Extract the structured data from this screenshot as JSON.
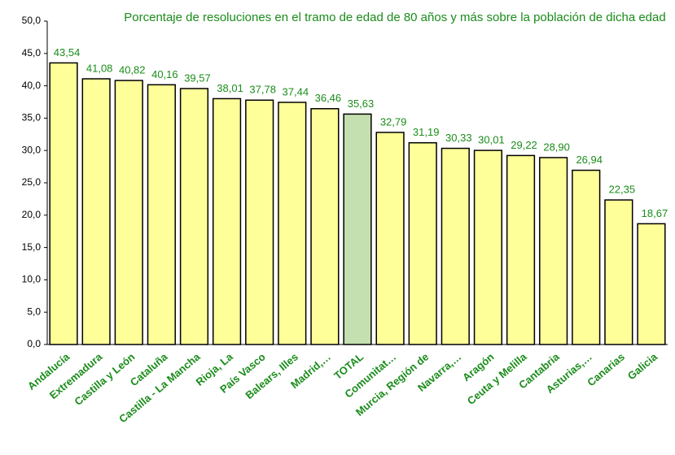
{
  "chart_data": {
    "type": "bar",
    "title": "Porcentaje de resoluciones en el tramo de edad de 80 años y más sobre la población de dicha edad",
    "categories": [
      "Andalucía",
      "Extremadura",
      "Castilla y León",
      "Cataluña",
      "Castilla - La Mancha",
      "Rioja, La",
      "País Vasco",
      "Balears, Illes",
      "Madrid,…",
      "TOTAL",
      "Comunitat…",
      "Murcia, Región de",
      "Navarra,…",
      "Aragón",
      "Ceuta y Melilla",
      "Cantabria",
      "Asturias,…",
      "Canarias",
      "Galicia"
    ],
    "values": [
      43.54,
      41.08,
      40.82,
      40.16,
      39.57,
      38.01,
      37.78,
      37.44,
      36.46,
      35.63,
      32.79,
      31.19,
      30.33,
      30.01,
      29.22,
      28.9,
      26.94,
      22.35,
      18.67
    ],
    "value_labels": [
      "43,54",
      "41,08",
      "40,82",
      "40,16",
      "39,57",
      "38,01",
      "37,78",
      "37,44",
      "36,46",
      "35,63",
      "32,79",
      "31,19",
      "30,33",
      "30,01",
      "29,22",
      "28,90",
      "26,94",
      "22,35",
      "18,67"
    ],
    "colors": [
      "#ffff99",
      "#ffff99",
      "#ffff99",
      "#ffff99",
      "#ffff99",
      "#ffff99",
      "#ffff99",
      "#ffff99",
      "#ffff99",
      "#c4dfb0",
      "#ffff99",
      "#ffff99",
      "#ffff99",
      "#ffff99",
      "#ffff99",
      "#ffff99",
      "#ffff99",
      "#ffff99",
      "#ffff99"
    ],
    "ylim": [
      0,
      50
    ],
    "yticks": [
      {
        "value": 0,
        "label": "0,0"
      },
      {
        "value": 5,
        "label": "5,0"
      },
      {
        "value": 10,
        "label": "10,0"
      },
      {
        "value": 15,
        "label": "15,0"
      },
      {
        "value": 20,
        "label": "20,0"
      },
      {
        "value": 25,
        "label": "25,0"
      },
      {
        "value": 30,
        "label": "30,0"
      },
      {
        "value": 35,
        "label": "35,0"
      },
      {
        "value": 40,
        "label": "40,0"
      },
      {
        "value": 45,
        "label": "45,0"
      },
      {
        "value": 50,
        "label": "50,0"
      }
    ],
    "grid": false
  }
}
